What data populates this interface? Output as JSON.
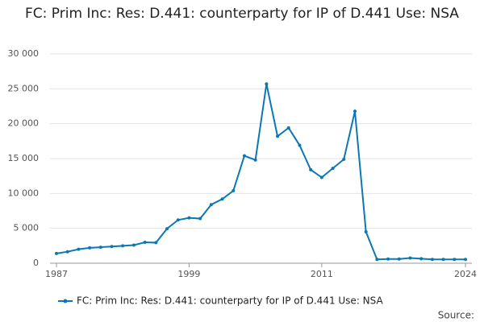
{
  "chart_data": {
    "type": "line",
    "title": "FC: Prim Inc: Res: D.441: counterparty for IP of D.441 Use: NSA",
    "x": [
      1987,
      1988,
      1989,
      1990,
      1991,
      1992,
      1993,
      1994,
      1995,
      1996,
      1997,
      1998,
      1999,
      2000,
      2001,
      2002,
      2003,
      2004,
      2005,
      2006,
      2007,
      2008,
      2009,
      2010,
      2011,
      2012,
      2013,
      2014,
      2015,
      2016,
      2017,
      2018,
      2019,
      2020,
      2021,
      2022,
      2023,
      2024
    ],
    "series": [
      {
        "name": "FC: Prim Inc: Res: D.441: counterparty for IP of D.441 Use: NSA",
        "color": "#0b78b4",
        "values": [
          1400,
          1650,
          2000,
          2200,
          2300,
          2400,
          2500,
          2600,
          3000,
          2950,
          4950,
          6200,
          6500,
          6400,
          8400,
          9200,
          10400,
          15400,
          14800,
          25700,
          18200,
          19400,
          16900,
          13400,
          12300,
          13600,
          14900,
          21800,
          4500,
          550,
          600,
          600,
          750,
          650,
          550,
          550,
          550,
          550
        ]
      }
    ],
    "xlim": [
      1987,
      2024
    ],
    "xticks": [
      1987,
      1999,
      2011,
      2024
    ],
    "ylim": [
      0,
      30000
    ],
    "yticks": [
      0,
      {
        "value": 5000,
        "label": "5 000"
      },
      {
        "value": 10000,
        "label": "10 000"
      },
      {
        "value": 15000,
        "label": "15 000"
      },
      {
        "value": 20000,
        "label": "20 000"
      },
      {
        "value": 25000,
        "label": "25 000"
      },
      {
        "value": 30000,
        "label": "30 000"
      }
    ],
    "grid": true,
    "source": "Source:"
  }
}
